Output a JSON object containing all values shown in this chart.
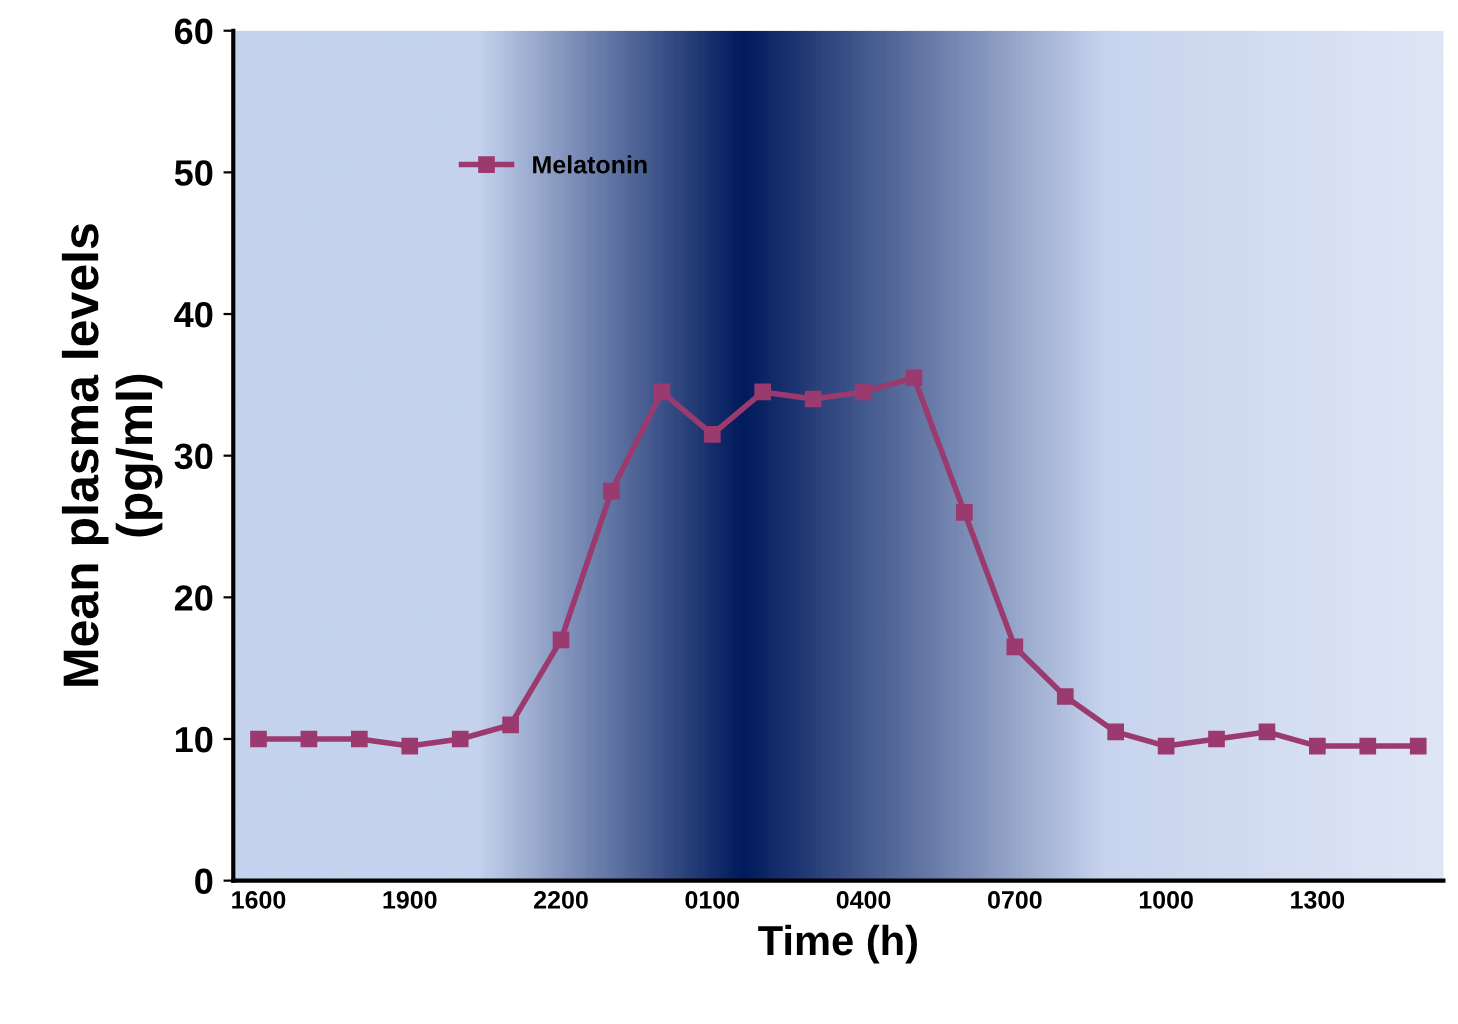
{
  "chart_data": {
    "type": "line",
    "xlabel": "Time (h)",
    "ylabel": "Mean plasma levels\n(pg/ml)",
    "categories": [
      "1600",
      null,
      null,
      "1900",
      null,
      null,
      "2200",
      null,
      null,
      "0100",
      null,
      null,
      "0400",
      null,
      null,
      "0700",
      null,
      null,
      "1000",
      null,
      null,
      "1300",
      null,
      null
    ],
    "series": [
      {
        "name": "Melatonin",
        "color": "#9b3a6e",
        "values": [
          10,
          10,
          10,
          9.5,
          10,
          11,
          17,
          27.5,
          34.5,
          31.5,
          34.5,
          34,
          34.5,
          35.5,
          26,
          16.5,
          13,
          10.5,
          9.5,
          10,
          10.5,
          9.5,
          9.5,
          9.5
        ]
      }
    ],
    "ylim": [
      0,
      60
    ],
    "yticks": [
      0,
      10,
      20,
      30,
      40,
      50,
      60
    ],
    "grid": false,
    "legend": "top left",
    "marker": "square",
    "line_style": "solid"
  }
}
